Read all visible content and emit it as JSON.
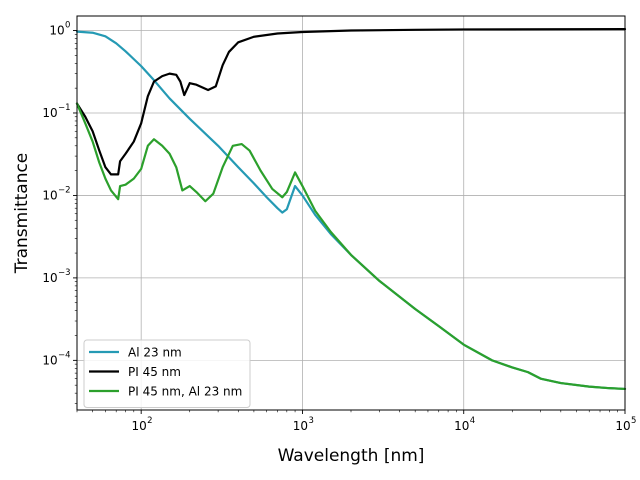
{
  "chart_data": {
    "type": "line",
    "title": "",
    "xlabel": "Wavelength [nm]",
    "ylabel": "Transmittance",
    "xscale": "log",
    "yscale": "log",
    "xlim": [
      40,
      100000
    ],
    "ylim": [
      2.5e-05,
      1.5
    ],
    "grid": true,
    "legend_position": "bottom-left",
    "x_ticks": [
      {
        "base": "10",
        "exp": "2",
        "value": 100
      },
      {
        "base": "10",
        "exp": "3",
        "value": 1000
      },
      {
        "base": "10",
        "exp": "4",
        "value": 10000
      },
      {
        "base": "10",
        "exp": "5",
        "value": 100000
      }
    ],
    "y_ticks": [
      {
        "base": "10",
        "exp": "0",
        "value": 1
      },
      {
        "base": "10",
        "exp": "−1",
        "value": 0.1
      },
      {
        "base": "10",
        "exp": "−2",
        "value": 0.01
      },
      {
        "base": "10",
        "exp": "−3",
        "value": 0.001
      },
      {
        "base": "10",
        "exp": "−4",
        "value": 0.0001
      }
    ],
    "series": [
      {
        "name": "Al 23 nm",
        "color": "#259ab4",
        "x": [
          40,
          50,
          60,
          70,
          80,
          90,
          100,
          120,
          150,
          200,
          300,
          400,
          500,
          600,
          700,
          750,
          800,
          900,
          1000,
          1200,
          1500,
          2000,
          3000,
          5000,
          7000,
          10000,
          15000,
          20000,
          25000,
          30000,
          40000,
          60000,
          80000,
          100000
        ],
        "y": [
          0.97,
          0.94,
          0.85,
          0.7,
          0.56,
          0.45,
          0.37,
          0.25,
          0.15,
          0.085,
          0.04,
          0.022,
          0.014,
          0.0095,
          0.007,
          0.0062,
          0.0068,
          0.013,
          0.01,
          0.0058,
          0.0034,
          0.0019,
          0.00092,
          0.00042,
          0.00026,
          0.000155,
          0.0001,
          8.2e-05,
          7.2e-05,
          6e-05,
          5.3e-05,
          4.8e-05,
          4.6e-05,
          4.5e-05
        ]
      },
      {
        "name": "PI 45 nm",
        "color": "#000000",
        "x": [
          40,
          45,
          50,
          55,
          60,
          65,
          72,
          74,
          80,
          90,
          100,
          110,
          120,
          135,
          150,
          165,
          175,
          185,
          200,
          220,
          260,
          290,
          320,
          350,
          400,
          500,
          700,
          1000,
          2000,
          5000,
          10000,
          100000
        ],
        "y": [
          0.13,
          0.09,
          0.06,
          0.035,
          0.022,
          0.018,
          0.018,
          0.026,
          0.032,
          0.045,
          0.075,
          0.16,
          0.24,
          0.28,
          0.3,
          0.29,
          0.24,
          0.165,
          0.23,
          0.22,
          0.19,
          0.21,
          0.38,
          0.55,
          0.72,
          0.84,
          0.92,
          0.96,
          1.0,
          1.02,
          1.03,
          1.04
        ]
      },
      {
        "name": "PI 45 nm, Al 23 nm",
        "color": "#2ca02c",
        "x": [
          40,
          45,
          50,
          55,
          60,
          65,
          72,
          74,
          80,
          90,
          100,
          110,
          120,
          135,
          150,
          165,
          180,
          200,
          220,
          250,
          280,
          320,
          370,
          420,
          470,
          550,
          650,
          750,
          800,
          900,
          1000,
          1200,
          1500,
          2000,
          3000,
          5000,
          7000,
          10000,
          15000,
          20000,
          25000,
          30000,
          40000,
          60000,
          80000,
          100000
        ],
        "y": [
          0.13,
          0.075,
          0.045,
          0.025,
          0.016,
          0.0115,
          0.009,
          0.013,
          0.0135,
          0.016,
          0.021,
          0.04,
          0.048,
          0.04,
          0.032,
          0.022,
          0.0115,
          0.013,
          0.011,
          0.0085,
          0.0105,
          0.022,
          0.04,
          0.042,
          0.035,
          0.02,
          0.012,
          0.0095,
          0.011,
          0.019,
          0.013,
          0.0065,
          0.0036,
          0.0019,
          0.00092,
          0.00042,
          0.00026,
          0.000155,
          0.0001,
          8.2e-05,
          7.2e-05,
          6e-05,
          5.3e-05,
          4.8e-05,
          4.6e-05,
          4.5e-05
        ]
      }
    ]
  }
}
